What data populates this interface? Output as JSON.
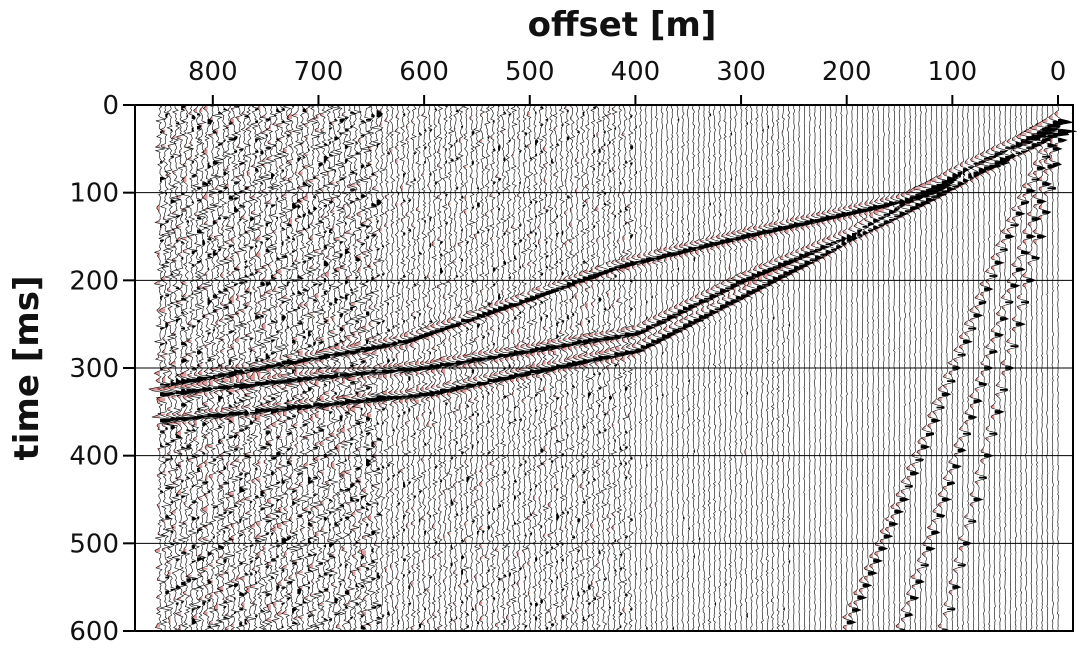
{
  "chart_data": {
    "type": "seismic-gather",
    "title": "",
    "xlabel": "offset [m]",
    "ylabel": "time [ms]",
    "x_axis_position": "top",
    "xlim": [
      850,
      0
    ],
    "ylim": [
      0,
      600
    ],
    "x_ticks": [
      800,
      700,
      600,
      500,
      400,
      300,
      200,
      100,
      0
    ],
    "y_ticks": [
      0,
      100,
      200,
      300,
      400,
      500,
      600
    ],
    "x_tick_labels": [
      "800",
      "700",
      "600",
      "500",
      "400",
      "300",
      "200",
      "100",
      "0"
    ],
    "y_tick_labels": [
      "0",
      "100",
      "200",
      "300",
      "400",
      "500",
      "600"
    ],
    "grid": true,
    "trace_spacing_m": 5,
    "colors": {
      "positive_fill": "#000000",
      "negative_fill": "#c84b4b",
      "grid": "#000000",
      "trace": "#000000"
    },
    "events": [
      {
        "name": "direct-wave",
        "points": [
          [
            0,
            15
          ],
          [
            60,
            65
          ],
          [
            150,
            110
          ],
          [
            300,
            150
          ],
          [
            420,
            185
          ],
          [
            500,
            220
          ],
          [
            620,
            270
          ],
          [
            850,
            320
          ]
        ]
      },
      {
        "name": "reflection",
        "points": [
          [
            0,
            20
          ],
          [
            100,
            80
          ],
          [
            200,
            150
          ],
          [
            300,
            200
          ],
          [
            400,
            260
          ],
          [
            500,
            280
          ],
          [
            600,
            300
          ],
          [
            700,
            310
          ],
          [
            850,
            330
          ]
        ]
      },
      {
        "name": "deep-reflection",
        "points": [
          [
            0,
            30
          ],
          [
            400,
            280
          ],
          [
            600,
            330
          ],
          [
            850,
            360
          ]
        ]
      },
      {
        "name": "ground-roll-1",
        "points": [
          [
            0,
            20
          ],
          [
            50,
            150
          ],
          [
            100,
            300
          ],
          [
            150,
            450
          ],
          [
            200,
            590
          ]
        ]
      },
      {
        "name": "ground-roll-2",
        "points": [
          [
            0,
            30
          ],
          [
            30,
            150
          ],
          [
            70,
            300
          ],
          [
            110,
            450
          ],
          [
            150,
            600
          ]
        ]
      },
      {
        "name": "ground-roll-3",
        "points": [
          [
            0,
            40
          ],
          [
            20,
            150
          ],
          [
            50,
            300
          ],
          [
            80,
            450
          ],
          [
            110,
            600
          ]
        ]
      }
    ]
  }
}
